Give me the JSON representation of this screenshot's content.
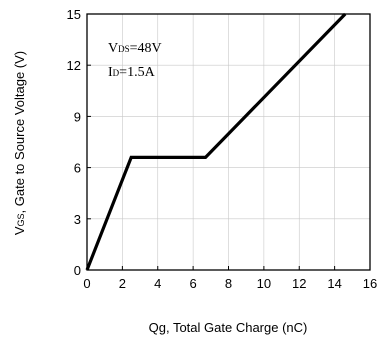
{
  "chart_data": {
    "type": "line",
    "title": "",
    "xlabel": "Qg, Total Gate Charge (nC)",
    "ylabel": "V GS, Gate to Source Voltage (V)",
    "ylabel_main": "V",
    "ylabel_sub": "GS",
    "ylabel_rest": ", Gate to Source Voltage (V)",
    "xlim": [
      0,
      16
    ],
    "ylim": [
      0,
      15
    ],
    "xticks": [
      0,
      2,
      4,
      6,
      8,
      10,
      12,
      14,
      16
    ],
    "yticks": [
      0,
      3,
      6,
      9,
      12,
      15
    ],
    "grid": true,
    "series": [
      {
        "x": [
          0,
          2.5,
          6.7,
          14.6
        ],
        "y": [
          0,
          6.6,
          6.6,
          15
        ]
      }
    ],
    "annotations": [
      {
        "main": "V",
        "sub": "DS",
        "rest": "=48V"
      },
      {
        "main": "I",
        "sub": "D",
        "rest": "=1.5A"
      }
    ]
  }
}
